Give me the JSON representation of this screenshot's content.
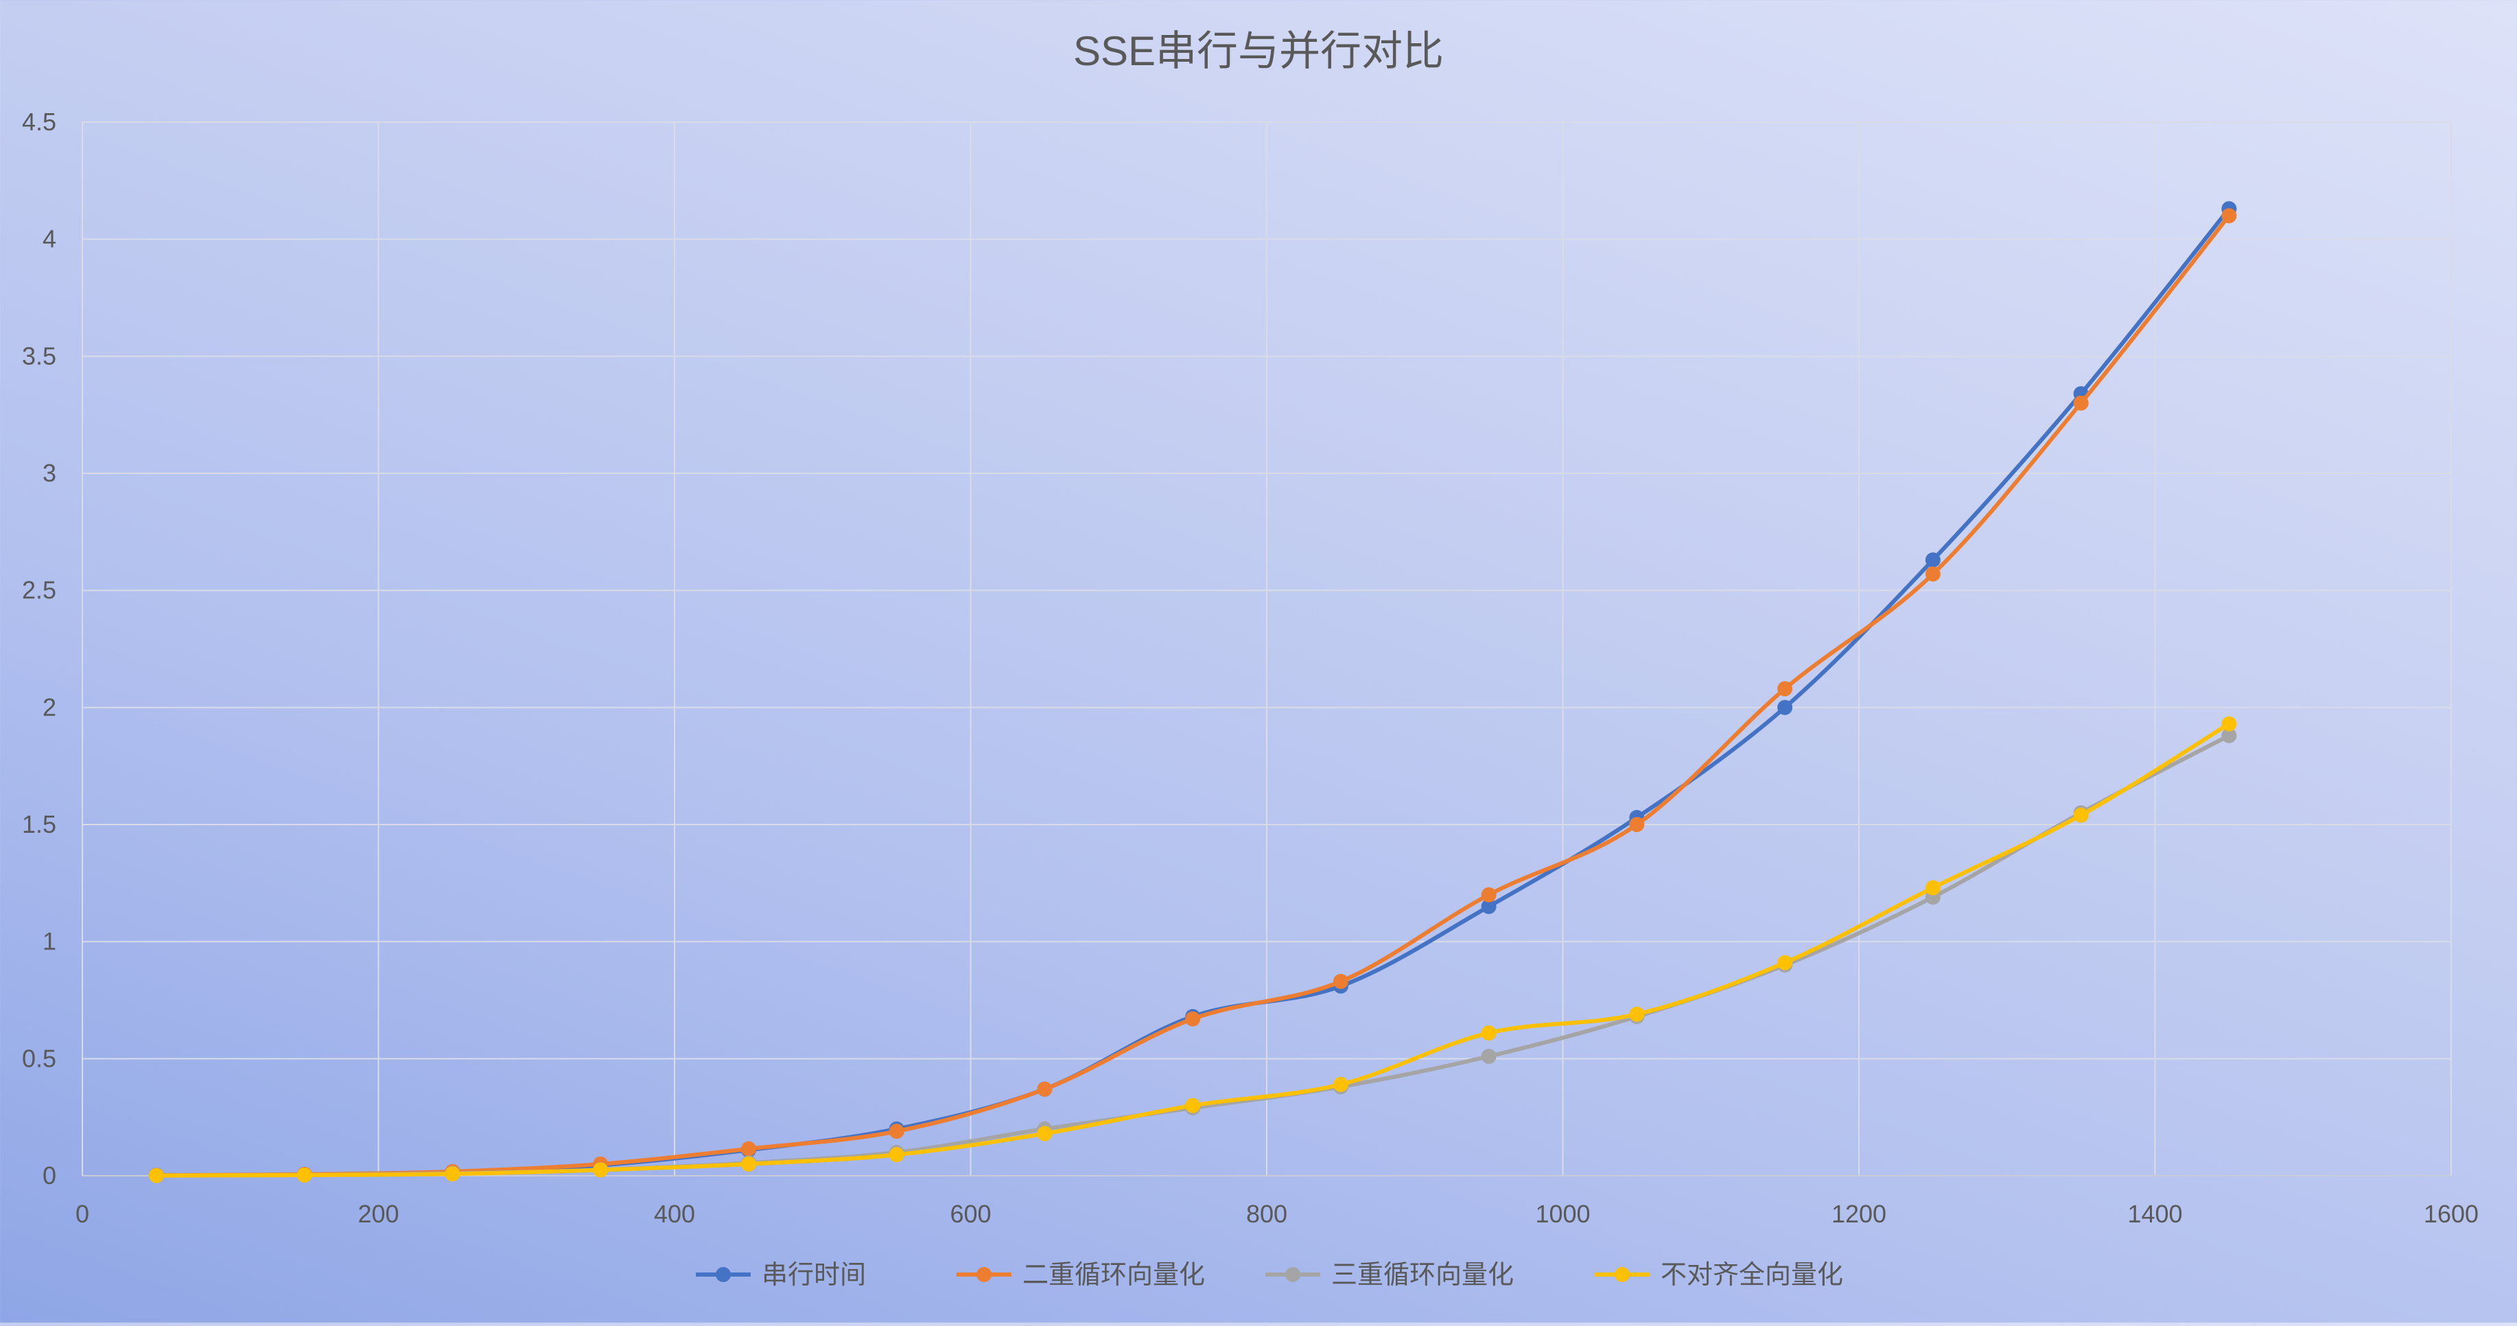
{
  "chart_data": {
    "type": "scatter",
    "title": "SSE串行与并行对比",
    "xlim": [
      0,
      1600
    ],
    "ylim": [
      0,
      4.5
    ],
    "xticks": [
      "0",
      "200",
      "400",
      "600",
      "800",
      "1000",
      "1200",
      "1400",
      "1600"
    ],
    "yticks": [
      "0",
      "0.5",
      "1",
      "1.5",
      "2",
      "2.5",
      "3",
      "3.5",
      "4",
      "4.5"
    ],
    "grid": true,
    "smooth_lines": true,
    "legend_position": "bottom",
    "x": [
      50,
      150,
      250,
      350,
      450,
      550,
      650,
      750,
      850,
      950,
      1050,
      1150,
      1250,
      1350,
      1450
    ],
    "series": [
      {
        "name": "串行时间",
        "color": "#4472c4",
        "values": [
          0.002,
          0.005,
          0.015,
          0.045,
          0.11,
          0.2,
          0.37,
          0.68,
          0.81,
          1.15,
          1.53,
          2.0,
          2.63,
          3.34,
          4.13
        ]
      },
      {
        "name": "二重循环向量化",
        "color": "#ed7d31",
        "values": [
          0.002,
          0.006,
          0.018,
          0.05,
          0.115,
          0.19,
          0.37,
          0.67,
          0.83,
          1.2,
          1.5,
          2.08,
          2.57,
          3.3,
          4.1
        ]
      },
      {
        "name": "三重循环向量化",
        "color": "#a5a5a5",
        "values": [
          0.001,
          0.003,
          0.01,
          0.025,
          0.055,
          0.1,
          0.2,
          0.29,
          0.38,
          0.51,
          0.68,
          0.9,
          1.19,
          1.55,
          1.88
        ]
      },
      {
        "name": "不对齐全向量化",
        "color": "#ffc000",
        "values": [
          0.001,
          0.003,
          0.008,
          0.025,
          0.05,
          0.09,
          0.18,
          0.3,
          0.39,
          0.61,
          0.69,
          0.91,
          1.23,
          1.54,
          1.93
        ]
      }
    ]
  }
}
